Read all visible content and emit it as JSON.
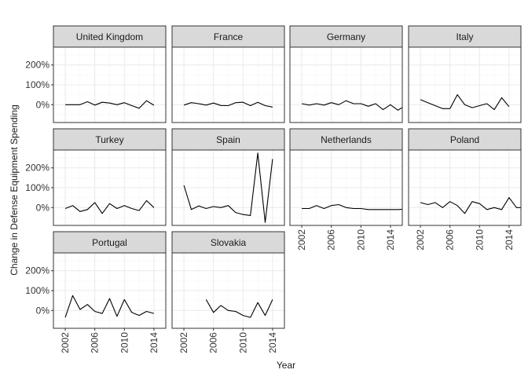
{
  "chart_data": {
    "type": "line",
    "layout": "facet-grid",
    "xlabel": "Year",
    "ylabel": "Change in Defense Equipment Spending",
    "xlim": [
      2000.4,
      2015.6
    ],
    "ylim": [
      -90,
      290
    ],
    "x_ticks": [
      2002,
      2006,
      2010,
      2014
    ],
    "y_ticks": [
      0,
      100,
      200
    ],
    "y_tick_labels": [
      "0%",
      "100%",
      "200%"
    ],
    "grid": true,
    "colors": {
      "line": "#000000",
      "strip": "#d9d9d9",
      "strip_border": "#333333",
      "panel_border": "#333333",
      "grid_major": "#ebebeb",
      "grid_minor": "#f5f5f5"
    },
    "panels": [
      {
        "name": "United Kingdom",
        "x": [
          2002,
          2003,
          2004,
          2005,
          2006,
          2007,
          2008,
          2009,
          2010,
          2011,
          2012,
          2013,
          2014
        ],
        "values": [
          0,
          0,
          0,
          15,
          -2,
          12,
          8,
          0,
          10,
          -5,
          -18,
          20,
          -3
        ]
      },
      {
        "name": "France",
        "x": [
          2002,
          2003,
          2004,
          2005,
          2006,
          2007,
          2008,
          2009,
          2010,
          2011,
          2012,
          2013,
          2014
        ],
        "values": [
          -2,
          10,
          5,
          -2,
          8,
          -4,
          -5,
          10,
          12,
          -5,
          12,
          -5,
          -12
        ]
      },
      {
        "name": "Germany",
        "x": [
          2002,
          2003,
          2004,
          2005,
          2006,
          2007,
          2008,
          2009,
          2010,
          2011,
          2012,
          2013,
          2014,
          2015,
          2016
        ],
        "values": [
          5,
          -2,
          5,
          -2,
          10,
          0,
          20,
          5,
          5,
          -8,
          5,
          -25,
          0,
          -28,
          -5
        ]
      },
      {
        "name": "Italy",
        "x": [
          2002,
          2003,
          2004,
          2005,
          2006,
          2007,
          2008,
          2009,
          2010,
          2011,
          2012,
          2013,
          2014
        ],
        "values": [
          25,
          10,
          -5,
          -20,
          -20,
          50,
          0,
          -15,
          -5,
          5,
          -25,
          35,
          -10
        ]
      },
      {
        "name": "Turkey",
        "x": [
          2002,
          2003,
          2004,
          2005,
          2006,
          2007,
          2008,
          2009,
          2010,
          2011,
          2012,
          2013,
          2014
        ],
        "values": [
          -5,
          10,
          -20,
          -10,
          25,
          -30,
          20,
          -5,
          10,
          -5,
          -15,
          35,
          0
        ]
      },
      {
        "name": "Spain",
        "x": [
          2002,
          2003,
          2004,
          2005,
          2006,
          2007,
          2008,
          2009,
          2010,
          2011,
          2012,
          2013,
          2014
        ],
        "values": [
          112,
          -10,
          8,
          -5,
          5,
          0,
          10,
          -25,
          -35,
          -40,
          275,
          -75,
          245
        ]
      },
      {
        "name": "Netherlands",
        "x": [
          2002,
          2003,
          2004,
          2005,
          2006,
          2007,
          2008,
          2009,
          2010,
          2011,
          2012,
          2013,
          2014,
          2015,
          2016
        ],
        "values": [
          -5,
          -5,
          10,
          -5,
          10,
          15,
          0,
          -5,
          -5,
          -10,
          -10,
          -10,
          -10,
          -10,
          -8
        ]
      },
      {
        "name": "Poland",
        "x": [
          2002,
          2003,
          2004,
          2005,
          2006,
          2007,
          2008,
          2009,
          2010,
          2011,
          2012,
          2013,
          2014,
          2015,
          2016
        ],
        "values": [
          25,
          15,
          25,
          0,
          30,
          10,
          -30,
          30,
          20,
          -10,
          0,
          -10,
          50,
          0,
          0
        ]
      },
      {
        "name": "Portugal",
        "x": [
          2002,
          2003,
          2004,
          2005,
          2006,
          2007,
          2008,
          2009,
          2010,
          2011,
          2012,
          2013,
          2014
        ],
        "values": [
          -35,
          75,
          5,
          30,
          -5,
          -15,
          60,
          -30,
          55,
          -10,
          -25,
          -5,
          -15
        ]
      },
      {
        "name": "Slovakia",
        "x": [
          2005,
          2006,
          2007,
          2008,
          2009,
          2010,
          2011,
          2012,
          2013,
          2014
        ],
        "values": [
          55,
          -10,
          25,
          0,
          -5,
          -25,
          -35,
          40,
          -25,
          55
        ]
      }
    ]
  }
}
